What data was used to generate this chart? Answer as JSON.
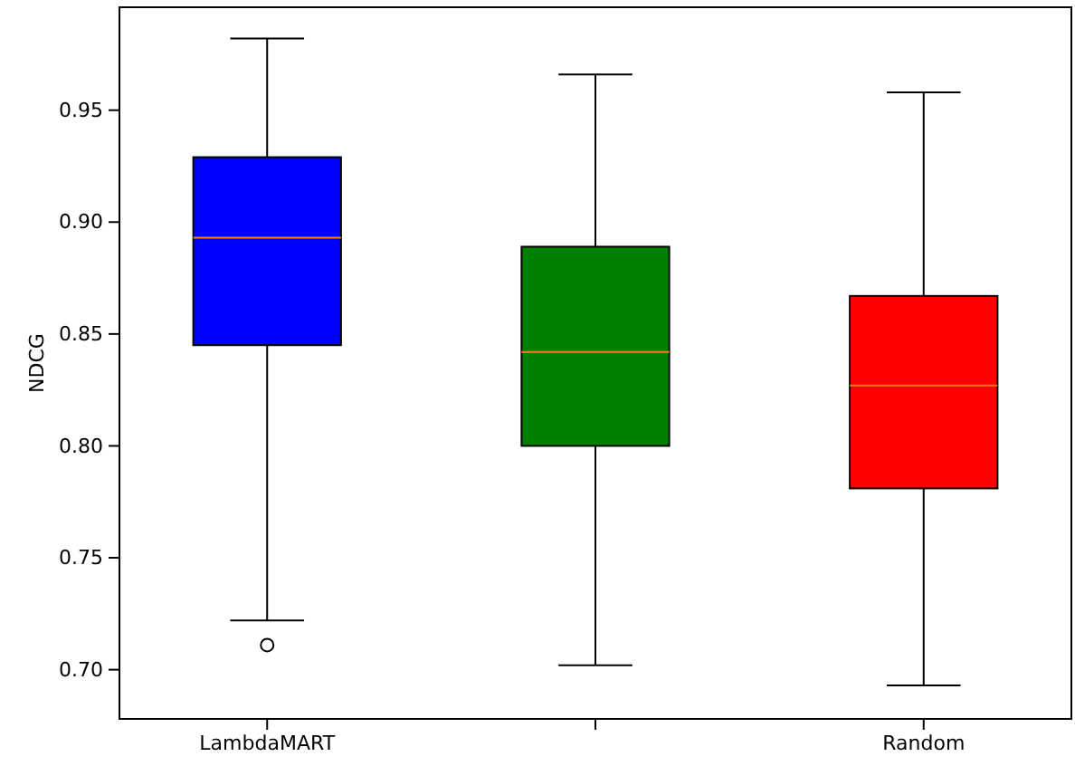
{
  "chart_data": {
    "type": "box",
    "ylabel": "NDCG",
    "categories": [
      "LambdaMART",
      null,
      "Random"
    ],
    "colors": [
      "#0000ff",
      "#008000",
      "#ff0000"
    ],
    "boxes": [
      {
        "low": 0.722,
        "q1": 0.845,
        "median": 0.893,
        "q3": 0.929,
        "high": 0.982,
        "outliers": [
          0.711
        ]
      },
      {
        "low": 0.702,
        "q1": 0.8,
        "median": 0.842,
        "q3": 0.889,
        "high": 0.966
      },
      {
        "low": 0.693,
        "q1": 0.781,
        "median": 0.827,
        "q3": 0.867,
        "high": 0.958
      }
    ],
    "ylim": [
      0.678,
      0.996
    ],
    "yticks": [
      {
        "value": 0.7,
        "label": "0.70"
      },
      {
        "value": 0.75,
        "label": "0.75"
      },
      {
        "value": 0.8,
        "label": "0.80"
      },
      {
        "value": 0.85,
        "label": "0.85"
      },
      {
        "value": 0.9,
        "label": "0.90"
      },
      {
        "value": 0.95,
        "label": "0.95"
      }
    ],
    "grid": false
  }
}
